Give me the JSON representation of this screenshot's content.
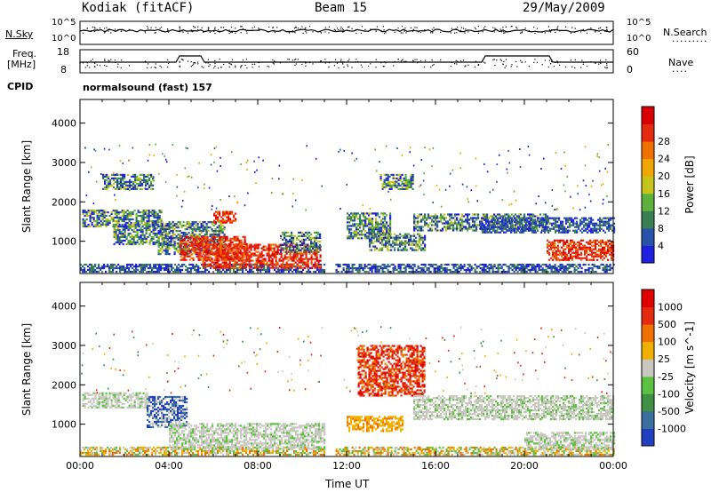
{
  "header": {
    "station": "Kodiak (fitACF)",
    "beam": "Beam 15",
    "date": "29/May/2009"
  },
  "strips": {
    "nsky_label": "N.Sky",
    "nsky_ticks": [
      "10^5",
      "10^0"
    ],
    "nsearch_label": "N.Search",
    "nsearch_ticks": [
      "10^5",
      "10^0"
    ],
    "freq_label_1": "Freq.",
    "freq_label_2": "[MHz]",
    "freq_ticks": [
      "18",
      "8"
    ],
    "nave_label": "Nave",
    "nave_ticks": [
      "60",
      "0"
    ],
    "cpid_label": "CPID",
    "cpid_value": "normalsound (fast) 157"
  },
  "chart_data": [
    {
      "type": "heatmap",
      "name": "power",
      "ylabel": "Slant Range [km]",
      "xlabel": "",
      "yticks": [
        "1000",
        "2000",
        "3000",
        "4000"
      ],
      "ylim": [
        180,
        4600
      ],
      "xlim": [
        0,
        24
      ],
      "colorbar": {
        "label": "Power [dB]",
        "ticks": [
          "4",
          "8",
          "12",
          "16",
          "20",
          "24",
          "28"
        ],
        "colors": [
          "#1f1fe0",
          "#2a52a8",
          "#3a7f52",
          "#5cb03c",
          "#c4c41a",
          "#f0a800",
          "#f07000",
          "#e52a10",
          "#d80000"
        ]
      },
      "regions": [
        {
          "t": [
            0.0,
            11.0
          ],
          "r": [
            200,
            420
          ],
          "level": "low"
        },
        {
          "t": [
            11.5,
            24.0
          ],
          "r": [
            200,
            420
          ],
          "level": "low"
        },
        {
          "t": [
            0.1,
            3.7
          ],
          "r": [
            1350,
            1800
          ],
          "level": "mid"
        },
        {
          "t": [
            1.0,
            3.3
          ],
          "r": [
            2300,
            2700
          ],
          "level": "mid"
        },
        {
          "t": [
            1.5,
            4.0
          ],
          "r": [
            900,
            1400
          ],
          "level": "mid"
        },
        {
          "t": [
            3.5,
            6.5
          ],
          "r": [
            650,
            1500
          ],
          "level": "mid"
        },
        {
          "t": [
            4.5,
            7.5
          ],
          "r": [
            500,
            1100
          ],
          "level": "high"
        },
        {
          "t": [
            5.5,
            10.8
          ],
          "r": [
            300,
            900
          ],
          "level": "high"
        },
        {
          "t": [
            6.0,
            7.0
          ],
          "r": [
            1450,
            1750
          ],
          "level": "high"
        },
        {
          "t": [
            9.0,
            10.8
          ],
          "r": [
            700,
            1200
          ],
          "level": "mid"
        },
        {
          "t": [
            12.0,
            14.0
          ],
          "r": [
            1050,
            1700
          ],
          "level": "mid"
        },
        {
          "t": [
            13.0,
            15.5
          ],
          "r": [
            750,
            1200
          ],
          "level": "mid"
        },
        {
          "t": [
            13.5,
            15.0
          ],
          "r": [
            2300,
            2700
          ],
          "level": "mid"
        },
        {
          "t": [
            15.0,
            21.0
          ],
          "r": [
            1250,
            1700
          ],
          "level": "mid"
        },
        {
          "t": [
            18.0,
            24.0
          ],
          "r": [
            1200,
            1600
          ],
          "level": "low"
        },
        {
          "t": [
            21.0,
            24.0
          ],
          "r": [
            500,
            1000
          ],
          "level": "high"
        }
      ]
    },
    {
      "type": "heatmap",
      "name": "velocity",
      "ylabel": "Slant Range [km]",
      "xlabel": "Time UT",
      "xticks": [
        "00:00",
        "04:00",
        "08:00",
        "12:00",
        "16:00",
        "20:00",
        "00:00"
      ],
      "yticks": [
        "1000",
        "2000",
        "3000",
        "4000"
      ],
      "ylim": [
        180,
        4600
      ],
      "xlim": [
        0,
        24
      ],
      "colorbar": {
        "label": "Velocity [m s^-1]",
        "ticks": [
          "1000",
          "500",
          "100",
          "25",
          "-25",
          "-100",
          "-500",
          "-1000"
        ],
        "colors": [
          "#2040c0",
          "#3a6fa0",
          "#3f8f45",
          "#5cc040",
          "#c8c8c0",
          "#f0b000",
          "#f07000",
          "#e52a10",
          "#e00000"
        ]
      },
      "regions": [
        {
          "t": [
            0.0,
            11.0
          ],
          "r": [
            200,
            420
          ],
          "level": "mixed"
        },
        {
          "t": [
            11.5,
            24.0
          ],
          "r": [
            200,
            420
          ],
          "level": "mixed"
        },
        {
          "t": [
            0.1,
            3.0
          ],
          "r": [
            1400,
            1800
          ],
          "level": "grey"
        },
        {
          "t": [
            3.0,
            4.8
          ],
          "r": [
            900,
            1700
          ],
          "level": "blue"
        },
        {
          "t": [
            4.0,
            11.0
          ],
          "r": [
            350,
            1000
          ],
          "level": "grey"
        },
        {
          "t": [
            12.0,
            14.5
          ],
          "r": [
            800,
            1200
          ],
          "level": "orange"
        },
        {
          "t": [
            12.5,
            15.5
          ],
          "r": [
            1700,
            3000
          ],
          "level": "red"
        },
        {
          "t": [
            15.0,
            24.0
          ],
          "r": [
            1100,
            1700
          ],
          "level": "grey"
        },
        {
          "t": [
            20.0,
            24.0
          ],
          "r": [
            350,
            800
          ],
          "level": "grey"
        }
      ]
    }
  ]
}
